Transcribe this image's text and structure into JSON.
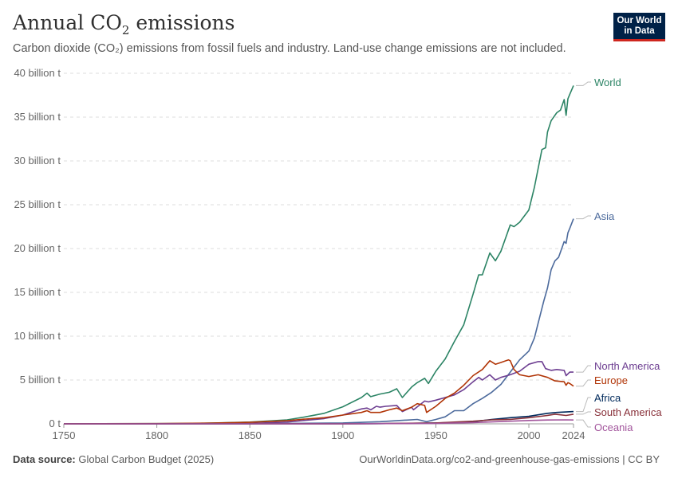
{
  "header": {
    "title": "Annual CO₂ emissions",
    "subtitle": "Carbon dioxide (CO₂) emissions from fossil fuels and industry. Land-use change emissions are not included.",
    "logo_line1": "Our World",
    "logo_line2": "in Data"
  },
  "footer": {
    "source_label": "Data source:",
    "source_text": "Global Carbon Budget (2025)",
    "url_text": "OurWorldinData.org/co2-and-greenhouse-gas-emissions | CC BY"
  },
  "colors": {
    "World": "#2c8465",
    "Asia": "#4c6a9c",
    "North America": "#6d3e91",
    "Europe": "#b13507",
    "Africa": "#00295b",
    "South America": "#883039",
    "Oceania": "#a2559c"
  },
  "chart_data": {
    "type": "line",
    "title": "Annual CO₂ emissions",
    "subtitle": "Carbon dioxide (CO₂) emissions from fossil fuels and industry. Land-use change emissions are not included.",
    "xlim": [
      1750,
      2024
    ],
    "ylim": [
      0,
      40
    ],
    "x_ticks": [
      1750,
      1800,
      1850,
      1900,
      1950,
      2000,
      2024
    ],
    "y_ticks": [
      0,
      5,
      10,
      15,
      20,
      25,
      30,
      35,
      40
    ],
    "y_tick_labels": [
      "0 t",
      "5 billion t",
      "10 billion t",
      "15 billion t",
      "20 billion t",
      "25 billion t",
      "30 billion t",
      "35 billion t",
      "40 billion t"
    ],
    "grid": "horizontal dashed",
    "legend": "right (end labels)",
    "series": [
      {
        "name": "World",
        "color": "#2c8465",
        "points": [
          [
            1750,
            0.01
          ],
          [
            1800,
            0.03
          ],
          [
            1820,
            0.05
          ],
          [
            1850,
            0.2
          ],
          [
            1870,
            0.45
          ],
          [
            1880,
            0.8
          ],
          [
            1890,
            1.2
          ],
          [
            1900,
            1.95
          ],
          [
            1910,
            3.0
          ],
          [
            1913,
            3.5
          ],
          [
            1915,
            3.1
          ],
          [
            1920,
            3.4
          ],
          [
            1925,
            3.6
          ],
          [
            1929,
            4.0
          ],
          [
            1932,
            3.0
          ],
          [
            1937,
            4.2
          ],
          [
            1940,
            4.7
          ],
          [
            1944,
            5.2
          ],
          [
            1946,
            4.6
          ],
          [
            1950,
            6.0
          ],
          [
            1955,
            7.4
          ],
          [
            1960,
            9.4
          ],
          [
            1965,
            11.3
          ],
          [
            1970,
            14.8
          ],
          [
            1973,
            17.0
          ],
          [
            1975,
            17.0
          ],
          [
            1979,
            19.5
          ],
          [
            1980,
            19.2
          ],
          [
            1982,
            18.6
          ],
          [
            1985,
            19.7
          ],
          [
            1990,
            22.7
          ],
          [
            1992,
            22.5
          ],
          [
            1995,
            23.0
          ],
          [
            2000,
            24.4
          ],
          [
            2003,
            27.0
          ],
          [
            2007,
            31.3
          ],
          [
            2009,
            31.5
          ],
          [
            2010,
            33.3
          ],
          [
            2012,
            34.6
          ],
          [
            2015,
            35.5
          ],
          [
            2017,
            35.8
          ],
          [
            2019,
            37.0
          ],
          [
            2020,
            35.2
          ],
          [
            2021,
            37.1
          ],
          [
            2022,
            37.6
          ],
          [
            2024,
            38.6
          ]
        ]
      },
      {
        "name": "Asia",
        "color": "#4c6a9c",
        "points": [
          [
            1750,
            0.0
          ],
          [
            1850,
            0.0
          ],
          [
            1900,
            0.1
          ],
          [
            1920,
            0.25
          ],
          [
            1940,
            0.5
          ],
          [
            1945,
            0.25
          ],
          [
            1950,
            0.5
          ],
          [
            1955,
            0.8
          ],
          [
            1960,
            1.5
          ],
          [
            1965,
            1.5
          ],
          [
            1970,
            2.3
          ],
          [
            1975,
            2.9
          ],
          [
            1980,
            3.6
          ],
          [
            1985,
            4.5
          ],
          [
            1990,
            5.9
          ],
          [
            1995,
            7.3
          ],
          [
            2000,
            8.3
          ],
          [
            2003,
            9.8
          ],
          [
            2005,
            11.5
          ],
          [
            2008,
            14.0
          ],
          [
            2010,
            15.5
          ],
          [
            2012,
            17.6
          ],
          [
            2014,
            18.6
          ],
          [
            2016,
            19.0
          ],
          [
            2018,
            20.2
          ],
          [
            2019,
            20.8
          ],
          [
            2020,
            20.6
          ],
          [
            2021,
            21.8
          ],
          [
            2022,
            22.3
          ],
          [
            2024,
            23.4
          ]
        ]
      },
      {
        "name": "North America",
        "color": "#6d3e91",
        "points": [
          [
            1750,
            0.0
          ],
          [
            1800,
            0.0
          ],
          [
            1850,
            0.05
          ],
          [
            1870,
            0.2
          ],
          [
            1880,
            0.4
          ],
          [
            1890,
            0.6
          ],
          [
            1900,
            1.0
          ],
          [
            1910,
            1.7
          ],
          [
            1913,
            1.8
          ],
          [
            1915,
            1.6
          ],
          [
            1918,
            2.0
          ],
          [
            1920,
            1.9
          ],
          [
            1923,
            2.0
          ],
          [
            1929,
            2.1
          ],
          [
            1932,
            1.4
          ],
          [
            1937,
            1.9
          ],
          [
            1938,
            1.6
          ],
          [
            1944,
            2.6
          ],
          [
            1946,
            2.5
          ],
          [
            1950,
            2.7
          ],
          [
            1955,
            3.0
          ],
          [
            1960,
            3.3
          ],
          [
            1965,
            3.9
          ],
          [
            1970,
            4.8
          ],
          [
            1973,
            5.3
          ],
          [
            1975,
            5.0
          ],
          [
            1979,
            5.6
          ],
          [
            1982,
            5.0
          ],
          [
            1985,
            5.3
          ],
          [
            1990,
            5.6
          ],
          [
            1995,
            6.0
          ],
          [
            2000,
            6.8
          ],
          [
            2005,
            7.1
          ],
          [
            2007,
            7.1
          ],
          [
            2009,
            6.3
          ],
          [
            2012,
            6.1
          ],
          [
            2015,
            6.2
          ],
          [
            2019,
            6.1
          ],
          [
            2020,
            5.5
          ],
          [
            2022,
            5.9
          ],
          [
            2024,
            5.9
          ]
        ]
      },
      {
        "name": "Europe",
        "color": "#b13507",
        "points": [
          [
            1750,
            0.01
          ],
          [
            1800,
            0.03
          ],
          [
            1830,
            0.08
          ],
          [
            1850,
            0.17
          ],
          [
            1870,
            0.35
          ],
          [
            1880,
            0.55
          ],
          [
            1890,
            0.7
          ],
          [
            1900,
            1.0
          ],
          [
            1910,
            1.3
          ],
          [
            1913,
            1.5
          ],
          [
            1915,
            1.3
          ],
          [
            1920,
            1.3
          ],
          [
            1925,
            1.6
          ],
          [
            1929,
            1.8
          ],
          [
            1932,
            1.5
          ],
          [
            1937,
            1.9
          ],
          [
            1940,
            2.3
          ],
          [
            1944,
            2.1
          ],
          [
            1945,
            1.3
          ],
          [
            1950,
            2.0
          ],
          [
            1955,
            2.9
          ],
          [
            1960,
            3.5
          ],
          [
            1965,
            4.4
          ],
          [
            1970,
            5.5
          ],
          [
            1975,
            6.2
          ],
          [
            1979,
            7.2
          ],
          [
            1982,
            6.8
          ],
          [
            1985,
            7.0
          ],
          [
            1989,
            7.3
          ],
          [
            1990,
            7.2
          ],
          [
            1992,
            6.2
          ],
          [
            1995,
            5.6
          ],
          [
            2000,
            5.4
          ],
          [
            2005,
            5.6
          ],
          [
            2010,
            5.3
          ],
          [
            2014,
            4.9
          ],
          [
            2019,
            4.8
          ],
          [
            2020,
            4.4
          ],
          [
            2021,
            4.7
          ],
          [
            2022,
            4.6
          ],
          [
            2024,
            4.3
          ]
        ]
      },
      {
        "name": "Africa",
        "color": "#00295b",
        "points": [
          [
            1750,
            0.0
          ],
          [
            1900,
            0.0
          ],
          [
            1920,
            0.02
          ],
          [
            1950,
            0.1
          ],
          [
            1960,
            0.15
          ],
          [
            1970,
            0.25
          ],
          [
            1980,
            0.5
          ],
          [
            1990,
            0.7
          ],
          [
            2000,
            0.85
          ],
          [
            2010,
            1.2
          ],
          [
            2015,
            1.3
          ],
          [
            2020,
            1.35
          ],
          [
            2024,
            1.4
          ]
        ]
      },
      {
        "name": "South America",
        "color": "#883039",
        "points": [
          [
            1750,
            0.0
          ],
          [
            1900,
            0.0
          ],
          [
            1920,
            0.03
          ],
          [
            1950,
            0.1
          ],
          [
            1960,
            0.2
          ],
          [
            1970,
            0.3
          ],
          [
            1980,
            0.45
          ],
          [
            1990,
            0.5
          ],
          [
            2000,
            0.7
          ],
          [
            2010,
            0.95
          ],
          [
            2014,
            1.1
          ],
          [
            2020,
            0.95
          ],
          [
            2024,
            1.1
          ]
        ]
      },
      {
        "name": "Oceania",
        "color": "#a2559c",
        "points": [
          [
            1750,
            0.0
          ],
          [
            1900,
            0.0
          ],
          [
            1920,
            0.03
          ],
          [
            1950,
            0.05
          ],
          [
            1960,
            0.1
          ],
          [
            1970,
            0.15
          ],
          [
            1980,
            0.22
          ],
          [
            1990,
            0.3
          ],
          [
            2000,
            0.38
          ],
          [
            2010,
            0.44
          ],
          [
            2020,
            0.45
          ],
          [
            2024,
            0.44
          ]
        ]
      }
    ]
  }
}
